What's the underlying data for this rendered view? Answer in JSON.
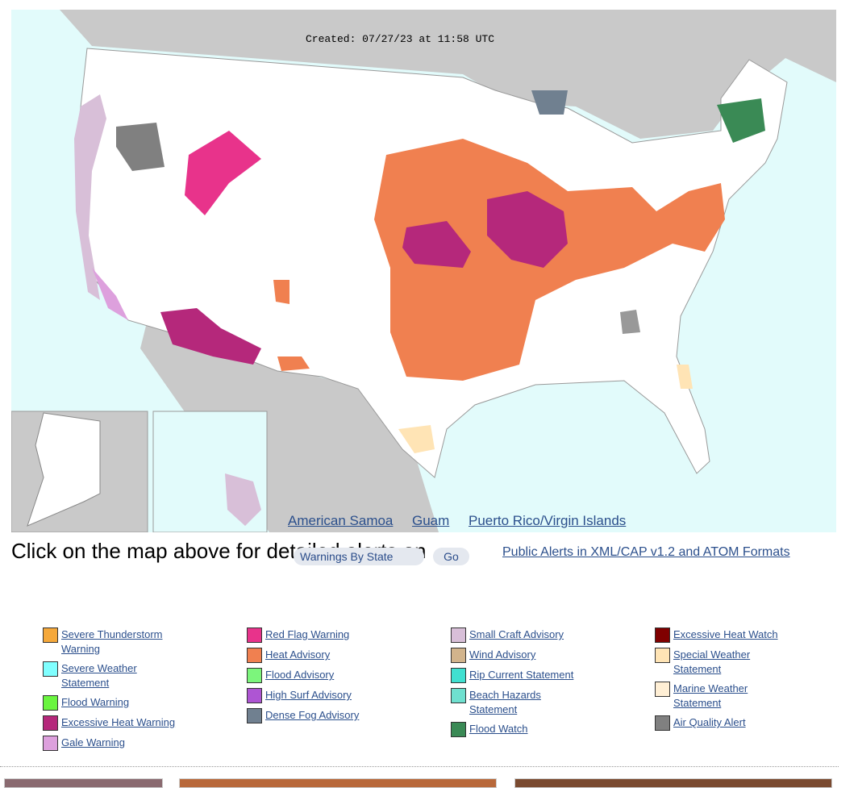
{
  "map": {
    "created": "Created: 07/27/23 at 11:58 UTC",
    "links": [
      "American Samoa",
      "Guam",
      "Puerto Rico/Virgin Islands"
    ]
  },
  "controls": {
    "prompt": "Click on the map above for detailed alerts on",
    "select": "Warnings By State",
    "button": "Go",
    "feed_link": "Public Alerts in XML/CAP v1.2 and ATOM Formats"
  },
  "legend": {
    "columns": [
      [
        {
          "label": "Severe Thunderstorm Warning",
          "color": "#f5a83a"
        },
        {
          "label": "Severe Weather Statement",
          "color": "#80ffff"
        },
        {
          "label": "Flood Warning",
          "color": "#6af53f"
        },
        {
          "label": "Excessive Heat Warning",
          "color": "#b5287b"
        },
        {
          "label": "Gale Warning",
          "color": "#dda0dd"
        }
      ],
      [
        {
          "label": "Red Flag Warning",
          "color": "#e8338b"
        },
        {
          "label": "Heat Advisory",
          "color": "#f08050"
        },
        {
          "label": "Flood Advisory",
          "color": "#7cf57c"
        },
        {
          "label": "High Surf Advisory",
          "color": "#ae55d3"
        },
        {
          "label": "Dense Fog Advisory",
          "color": "#708090"
        }
      ],
      [
        {
          "label": "Small Craft Advisory",
          "color": "#d8bfd8"
        },
        {
          "label": "Wind Advisory",
          "color": "#d2b48c"
        },
        {
          "label": "Rip Current Statement",
          "color": "#40e0d0"
        },
        {
          "label": "Beach Hazards Statement",
          "color": "#6fe0cf"
        },
        {
          "label": "Flood Watch",
          "color": "#3a8a55"
        }
      ],
      [
        {
          "label": "Excessive Heat Watch",
          "color": "#800000"
        },
        {
          "label": "Special Weather Statement",
          "color": "#ffe4b5"
        },
        {
          "label": "Marine Weather Statement",
          "color": "#ffefd5"
        },
        {
          "label": "Air Quality Alert",
          "color": "#808080"
        }
      ]
    ]
  }
}
